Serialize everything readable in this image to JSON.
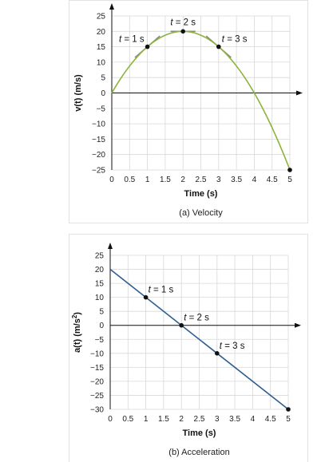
{
  "chart_data": [
    {
      "type": "line",
      "caption": "(a) Velocity",
      "xlabel": "Time (s)",
      "ylabel": "v(t) (m/s)",
      "xlim": [
        0,
        5
      ],
      "ylim": [
        -25,
        25
      ],
      "xticks": [
        "0",
        "0.5",
        "1",
        "1.5",
        "2",
        "2.5",
        "3",
        "3.5",
        "4",
        "4.5",
        "5"
      ],
      "yticks": [
        "25",
        "20",
        "15",
        "10",
        "5",
        "0",
        "−5",
        "−10",
        "−15",
        "−20",
        "−25"
      ],
      "grid": true,
      "curve": {
        "color": "#8db33a",
        "x": [
          0,
          0.25,
          0.5,
          0.75,
          1,
          1.25,
          1.5,
          1.75,
          2,
          2.25,
          2.5,
          2.75,
          3,
          3.25,
          3.5,
          3.75,
          4,
          4.25,
          4.5,
          4.75,
          5
        ],
        "y": [
          0,
          4.75,
          8.75,
          12.2,
          15,
          17.2,
          18.75,
          19.7,
          20,
          19.7,
          18.75,
          17.2,
          15,
          12.2,
          8.75,
          4.75,
          0,
          -4.25,
          -11.25,
          -17.8,
          -25
        ]
      },
      "points": [
        {
          "t": 1,
          "v": 15,
          "label_var": "t",
          "label_rest": " = 1 s"
        },
        {
          "t": 2,
          "v": 20,
          "label_var": "t",
          "label_rest": " = 2 s"
        },
        {
          "t": 3,
          "v": 15,
          "label_var": "t",
          "label_rest": " = 3 s"
        },
        {
          "t": 5,
          "v": -25
        }
      ],
      "tangents": [
        {
          "t": 1,
          "v": 15,
          "slope": 10
        },
        {
          "t": 2,
          "v": 20,
          "slope": 0
        },
        {
          "t": 3,
          "v": 15,
          "slope": -10
        }
      ],
      "tangent_color": "#888888"
    },
    {
      "type": "line",
      "caption": "(b) Acceleration",
      "xlabel": "Time (s)",
      "ylabel_main": "a(t) (m/s",
      "ylabel_sup": "2",
      "ylabel_end": ")",
      "xlim": [
        0,
        5
      ],
      "ylim": [
        -30,
        25
      ],
      "xticks": [
        "0",
        "0.5",
        "1",
        "1.5",
        "2",
        "2.5",
        "3",
        "3.5",
        "4",
        "4.5",
        "5"
      ],
      "yticks": [
        "25",
        "20",
        "15",
        "10",
        "5",
        "0",
        "−5",
        "−10",
        "−15",
        "−20",
        "−25",
        "−30"
      ],
      "grid": true,
      "line": {
        "color": "#2e5f8f",
        "x": [
          0,
          5
        ],
        "y": [
          20,
          -30
        ]
      },
      "points": [
        {
          "t": 1,
          "a": 10,
          "label_var": "t",
          "label_rest": " = 1 s"
        },
        {
          "t": 2,
          "a": 0,
          "label_var": "t",
          "label_rest": " = 2 s"
        },
        {
          "t": 3,
          "a": -10,
          "label_var": "t",
          "label_rest": " = 3 s"
        },
        {
          "t": 5,
          "a": -30
        }
      ]
    }
  ]
}
